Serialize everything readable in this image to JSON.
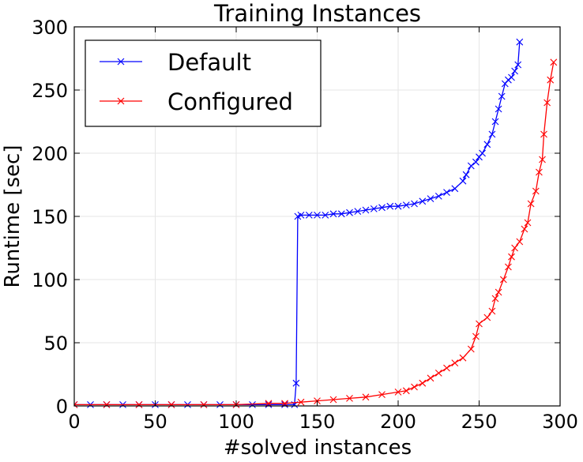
{
  "chart_data": {
    "type": "line",
    "title": "Training Instances",
    "xlabel": "#solved instances",
    "ylabel": "Runtime [sec]",
    "xlim": [
      0,
      300
    ],
    "ylim": [
      0,
      300
    ],
    "xticks": [
      "0",
      "50",
      "100",
      "150",
      "200",
      "250",
      "300"
    ],
    "yticks": [
      "0",
      "50",
      "100",
      "150",
      "200",
      "250",
      "300"
    ],
    "grid": true,
    "legend_position": "top-left",
    "series": [
      {
        "name": "Default",
        "color": "#0000ff",
        "marker": "x",
        "x": [
          0,
          10,
          20,
          30,
          40,
          50,
          60,
          70,
          80,
          90,
          100,
          110,
          120,
          130,
          136,
          137,
          138,
          140,
          145,
          150,
          155,
          160,
          165,
          170,
          175,
          180,
          185,
          190,
          195,
          200,
          205,
          210,
          215,
          220,
          225,
          230,
          235,
          240,
          242,
          245,
          248,
          250,
          252,
          255,
          258,
          260,
          262,
          264,
          266,
          268,
          270,
          272,
          274,
          275
        ],
        "y": [
          1,
          1,
          1,
          1,
          1,
          1,
          1,
          1,
          1,
          1,
          1,
          1,
          1,
          1,
          1,
          18,
          150,
          151,
          151,
          151,
          151,
          152,
          152,
          153,
          154,
          155,
          156,
          157,
          158,
          158,
          159,
          160,
          162,
          164,
          166,
          169,
          172,
          178,
          183,
          190,
          193,
          197,
          200,
          207,
          215,
          225,
          235,
          245,
          255,
          258,
          260,
          265,
          270,
          288
        ]
      },
      {
        "name": "Configured",
        "color": "#ff0000",
        "marker": "x",
        "x": [
          0,
          20,
          40,
          60,
          80,
          100,
          120,
          130,
          140,
          150,
          160,
          170,
          180,
          190,
          200,
          205,
          210,
          215,
          220,
          225,
          230,
          235,
          240,
          245,
          248,
          250,
          255,
          258,
          260,
          262,
          265,
          268,
          270,
          272,
          275,
          278,
          280,
          282,
          285,
          287,
          289,
          290,
          292,
          294,
          296
        ],
        "y": [
          1,
          1,
          1,
          1,
          1,
          1,
          2,
          2,
          3,
          4,
          5,
          6,
          7,
          9,
          11,
          12,
          15,
          18,
          22,
          26,
          30,
          34,
          38,
          45,
          55,
          65,
          70,
          75,
          85,
          90,
          100,
          110,
          118,
          125,
          130,
          140,
          145,
          160,
          170,
          185,
          195,
          215,
          240,
          258,
          272
        ]
      }
    ]
  }
}
